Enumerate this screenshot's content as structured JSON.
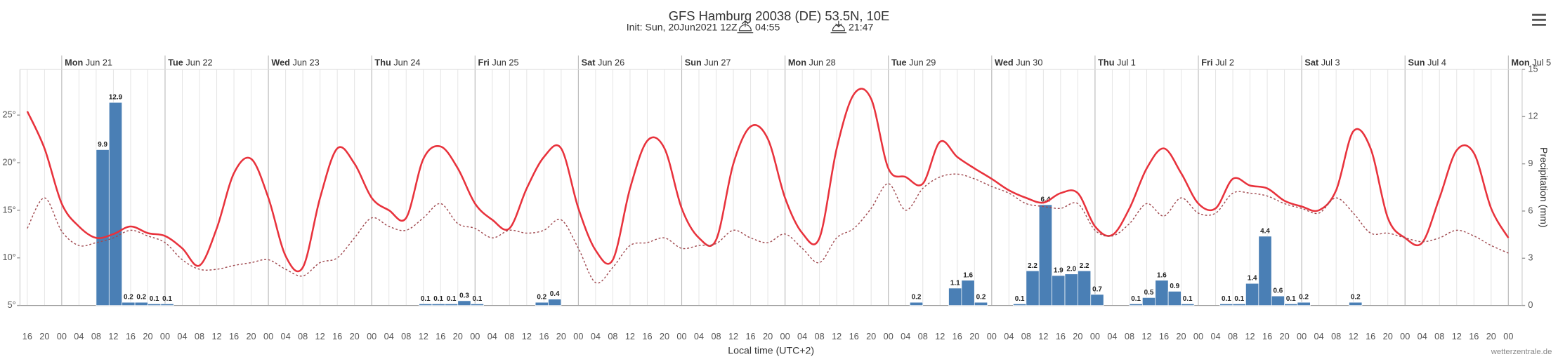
{
  "chart_data": {
    "type": "line",
    "title": "GFS Hamburg 20038 (DE) 53.5N, 10E",
    "subtitle": {
      "init": "Init: Sun, 20Jun2021 12Z",
      "sunrise": "04:55",
      "sunset": "21:47"
    },
    "x_label": "Local time (UTC+2)",
    "y2_label": "Precipitation (mm)",
    "credit": "wetterzentrale.de",
    "xlim": [
      -9.7,
      339.2
    ],
    "ylim": [
      5,
      29.8
    ],
    "yticks": [
      {
        "value": 5,
        "label": "5°"
      },
      {
        "value": 10,
        "label": "10°"
      },
      {
        "value": 15,
        "label": "15°"
      },
      {
        "value": 20,
        "label": "20°"
      },
      {
        "value": 25,
        "label": "25°"
      }
    ],
    "y2lim": [
      0,
      15
    ],
    "y2ticks": [
      0,
      3,
      6,
      9,
      12,
      15
    ],
    "days": [
      {
        "value": 0,
        "weekday": "Mon",
        "date": "Jun 21"
      },
      {
        "value": 24,
        "weekday": "Tue",
        "date": "Jun 22"
      },
      {
        "value": 48,
        "weekday": "Wed",
        "date": "Jun 23"
      },
      {
        "value": 72,
        "weekday": "Thu",
        "date": "Jun 24"
      },
      {
        "value": 96,
        "weekday": "Fri",
        "date": "Jun 25"
      },
      {
        "value": 120,
        "weekday": "Sat",
        "date": "Jun 26"
      },
      {
        "value": 144,
        "weekday": "Sun",
        "date": "Jun 27"
      },
      {
        "value": 168,
        "weekday": "Mon",
        "date": "Jun 28"
      },
      {
        "value": 192,
        "weekday": "Tue",
        "date": "Jun 29"
      },
      {
        "value": 216,
        "weekday": "Wed",
        "date": "Jun 30"
      },
      {
        "value": 240,
        "weekday": "Thu",
        "date": "Jul 1"
      },
      {
        "value": 264,
        "weekday": "Fri",
        "date": "Jul 2"
      },
      {
        "value": 288,
        "weekday": "Sat",
        "date": "Jul 3"
      },
      {
        "value": 312,
        "weekday": "Sun",
        "date": "Jul 4"
      },
      {
        "value": 336,
        "weekday": "Mon",
        "date": "Jul 5"
      }
    ],
    "xticks": [
      {
        "value": -8,
        "label": "16"
      },
      {
        "value": -4,
        "label": "20"
      },
      {
        "value": 0,
        "label": "00"
      },
      {
        "value": 4,
        "label": "04"
      },
      {
        "value": 8,
        "label": "08"
      },
      {
        "value": 12,
        "label": "12"
      },
      {
        "value": 16,
        "label": "16"
      },
      {
        "value": 20,
        "label": "20"
      },
      {
        "value": 24,
        "label": "00"
      },
      {
        "value": 28,
        "label": "04"
      },
      {
        "value": 32,
        "label": "08"
      },
      {
        "value": 36,
        "label": "12"
      },
      {
        "value": 40,
        "label": "16"
      },
      {
        "value": 44,
        "label": "20"
      },
      {
        "value": 48,
        "label": "00"
      },
      {
        "value": 52,
        "label": "04"
      },
      {
        "value": 56,
        "label": "08"
      },
      {
        "value": 60,
        "label": "12"
      },
      {
        "value": 64,
        "label": "16"
      },
      {
        "value": 68,
        "label": "20"
      },
      {
        "value": 72,
        "label": "00"
      },
      {
        "value": 76,
        "label": "04"
      },
      {
        "value": 80,
        "label": "08"
      },
      {
        "value": 84,
        "label": "12"
      },
      {
        "value": 88,
        "label": "16"
      },
      {
        "value": 92,
        "label": "20"
      },
      {
        "value": 96,
        "label": "00"
      },
      {
        "value": 100,
        "label": "04"
      },
      {
        "value": 104,
        "label": "08"
      },
      {
        "value": 108,
        "label": "12"
      },
      {
        "value": 112,
        "label": "16"
      },
      {
        "value": 116,
        "label": "20"
      },
      {
        "value": 120,
        "label": "00"
      },
      {
        "value": 124,
        "label": "04"
      },
      {
        "value": 128,
        "label": "08"
      },
      {
        "value": 132,
        "label": "12"
      },
      {
        "value": 136,
        "label": "16"
      },
      {
        "value": 140,
        "label": "20"
      },
      {
        "value": 144,
        "label": "00"
      },
      {
        "value": 148,
        "label": "04"
      },
      {
        "value": 152,
        "label": "08"
      },
      {
        "value": 156,
        "label": "12"
      },
      {
        "value": 160,
        "label": "16"
      },
      {
        "value": 164,
        "label": "20"
      },
      {
        "value": 168,
        "label": "00"
      },
      {
        "value": 172,
        "label": "04"
      },
      {
        "value": 176,
        "label": "08"
      },
      {
        "value": 180,
        "label": "12"
      },
      {
        "value": 184,
        "label": "16"
      },
      {
        "value": 188,
        "label": "20"
      },
      {
        "value": 192,
        "label": "00"
      },
      {
        "value": 196,
        "label": "04"
      },
      {
        "value": 200,
        "label": "08"
      },
      {
        "value": 204,
        "label": "12"
      },
      {
        "value": 208,
        "label": "16"
      },
      {
        "value": 212,
        "label": "20"
      },
      {
        "value": 216,
        "label": "00"
      },
      {
        "value": 220,
        "label": "04"
      },
      {
        "value": 224,
        "label": "08"
      },
      {
        "value": 228,
        "label": "12"
      },
      {
        "value": 232,
        "label": "16"
      },
      {
        "value": 236,
        "label": "20"
      },
      {
        "value": 240,
        "label": "00"
      },
      {
        "value": 244,
        "label": "04"
      },
      {
        "value": 248,
        "label": "08"
      },
      {
        "value": 252,
        "label": "12"
      },
      {
        "value": 256,
        "label": "16"
      },
      {
        "value": 260,
        "label": "20"
      },
      {
        "value": 264,
        "label": "00"
      },
      {
        "value": 268,
        "label": "04"
      },
      {
        "value": 272,
        "label": "08"
      },
      {
        "value": 276,
        "label": "12"
      },
      {
        "value": 280,
        "label": "16"
      },
      {
        "value": 284,
        "label": "20"
      },
      {
        "value": 288,
        "label": "00"
      },
      {
        "value": 292,
        "label": "04"
      },
      {
        "value": 296,
        "label": "08"
      },
      {
        "value": 300,
        "label": "12"
      },
      {
        "value": 304,
        "label": "16"
      },
      {
        "value": 308,
        "label": "20"
      },
      {
        "value": 312,
        "label": "00"
      },
      {
        "value": 316,
        "label": "04"
      },
      {
        "value": 320,
        "label": "08"
      },
      {
        "value": 324,
        "label": "12"
      },
      {
        "value": 328,
        "label": "16"
      },
      {
        "value": 332,
        "label": "20"
      },
      {
        "value": 336,
        "label": "00"
      }
    ],
    "x": [
      -8,
      -4,
      0,
      4,
      8,
      12,
      16,
      20,
      24,
      28,
      32,
      36,
      40,
      44,
      48,
      52,
      56,
      60,
      64,
      68,
      72,
      76,
      80,
      84,
      88,
      92,
      96,
      100,
      104,
      108,
      112,
      116,
      120,
      124,
      128,
      132,
      136,
      140,
      144,
      148,
      152,
      156,
      160,
      164,
      168,
      172,
      176,
      180,
      184,
      188,
      192,
      196,
      200,
      204,
      208,
      212,
      216,
      220,
      224,
      228,
      232,
      236,
      240,
      244,
      248,
      252,
      256,
      260,
      264,
      268,
      272,
      276,
      280,
      284,
      288,
      292,
      296,
      300,
      304,
      308,
      312,
      316,
      320,
      324,
      328,
      332,
      336
    ],
    "series": [
      {
        "type": "line",
        "color": "#e8323c",
        "values": [
          25.4,
          21.5,
          15.7,
          13.3,
          12.1,
          12.5,
          13.3,
          12.6,
          12.3,
          11.0,
          9.2,
          13.1,
          18.9,
          20.4,
          16.3,
          10.2,
          9.0,
          16.3,
          21.5,
          19.9,
          16.3,
          15.0,
          14.2,
          20.4,
          21.7,
          19.4,
          15.7,
          14.0,
          13.1,
          17.3,
          20.6,
          21.5,
          15.2,
          10.8,
          9.8,
          17.3,
          22.3,
          21.5,
          15.2,
          12.1,
          11.9,
          19.9,
          23.8,
          22.5,
          16.3,
          12.6,
          12.1,
          21.5,
          27.2,
          26.7,
          19.4,
          18.5,
          17.8,
          22.2,
          20.6,
          19.4,
          18.3,
          17.1,
          16.3,
          15.8,
          16.8,
          16.8,
          13.3,
          12.4,
          15.2,
          19.4,
          21.5,
          18.9,
          15.7,
          15.2,
          18.3,
          17.6,
          17.3,
          16.0,
          15.4,
          15.0,
          17.1,
          23.3,
          21.5,
          14.2,
          12.1,
          11.6,
          16.3,
          21.3,
          21.0,
          15.2,
          12.1
        ]
      },
      {
        "type": "line",
        "color": "#a0494f",
        "dashed": true,
        "values": [
          13.1,
          16.3,
          12.8,
          11.3,
          11.6,
          12.1,
          12.9,
          12.3,
          11.6,
          9.8,
          8.8,
          8.8,
          9.2,
          9.5,
          9.8,
          8.8,
          8.1,
          9.5,
          10.0,
          12.1,
          14.2,
          13.3,
          12.9,
          14.2,
          15.7,
          13.6,
          13.1,
          12.1,
          12.9,
          12.6,
          12.9,
          14.0,
          11.0,
          7.4,
          9.0,
          11.3,
          11.6,
          12.1,
          11.0,
          11.3,
          11.5,
          12.9,
          12.1,
          11.6,
          12.5,
          11.0,
          9.5,
          12.1,
          13.1,
          15.2,
          17.8,
          15.0,
          17.3,
          18.5,
          18.8,
          18.3,
          17.5,
          16.8,
          15.7,
          15.4,
          15.2,
          15.7,
          12.9,
          12.3,
          13.6,
          15.7,
          14.4,
          16.3,
          14.7,
          14.7,
          16.8,
          16.8,
          16.5,
          15.7,
          15.2,
          14.7,
          16.3,
          14.7,
          12.6,
          12.6,
          12.1,
          11.7,
          12.1,
          12.9,
          12.3,
          11.3,
          10.5
        ]
      },
      {
        "type": "bar",
        "axis": "y2",
        "color": "#4a7fb5",
        "width": 3,
        "x": [
          9.5,
          12.5,
          15.5,
          18.5,
          21.5,
          24.5,
          84.5,
          87.5,
          90.5,
          93.5,
          96.5,
          111.5,
          114.5,
          198.5,
          207.5,
          210.5,
          213.5,
          222.5,
          225.5,
          228.5,
          231.5,
          234.5,
          237.5,
          240.5,
          249.5,
          252.5,
          255.5,
          258.5,
          261.5,
          270.5,
          273.5,
          276.5,
          279.5,
          282.5,
          285.5,
          288.5,
          300.5
        ],
        "values": [
          9.9,
          12.9,
          0.2,
          0.2,
          0.1,
          0.1,
          0.1,
          0.1,
          0.1,
          0.3,
          0.1,
          0.2,
          0.4,
          0.2,
          1.1,
          1.6,
          0.2,
          0.1,
          2.2,
          6.4,
          1.9,
          2.0,
          2.2,
          0.7,
          0.1,
          0.5,
          1.6,
          0.9,
          0.1,
          0.1,
          0.1,
          1.4,
          4.4,
          0.6,
          0.1,
          0.2,
          0.2
        ],
        "value_labels": [
          "9.9",
          "12.9",
          "0.2",
          "0.2",
          "0.1",
          "0.1",
          "0.1",
          "0.1",
          "0.1",
          "0.3",
          "0.1",
          "0.2",
          "0.4",
          "0.2",
          "1.1",
          "1.6",
          "0.2",
          "0.1",
          "2.2",
          "6.4",
          "1.9",
          "2.0",
          "2.2",
          "0.7",
          "0.1",
          "0.5",
          "1.6",
          "0.9",
          "0.1",
          "0.1",
          "0.1",
          "1.4",
          "4.4",
          "0.6",
          "0.1",
          "0.2",
          "0.2"
        ]
      }
    ]
  }
}
